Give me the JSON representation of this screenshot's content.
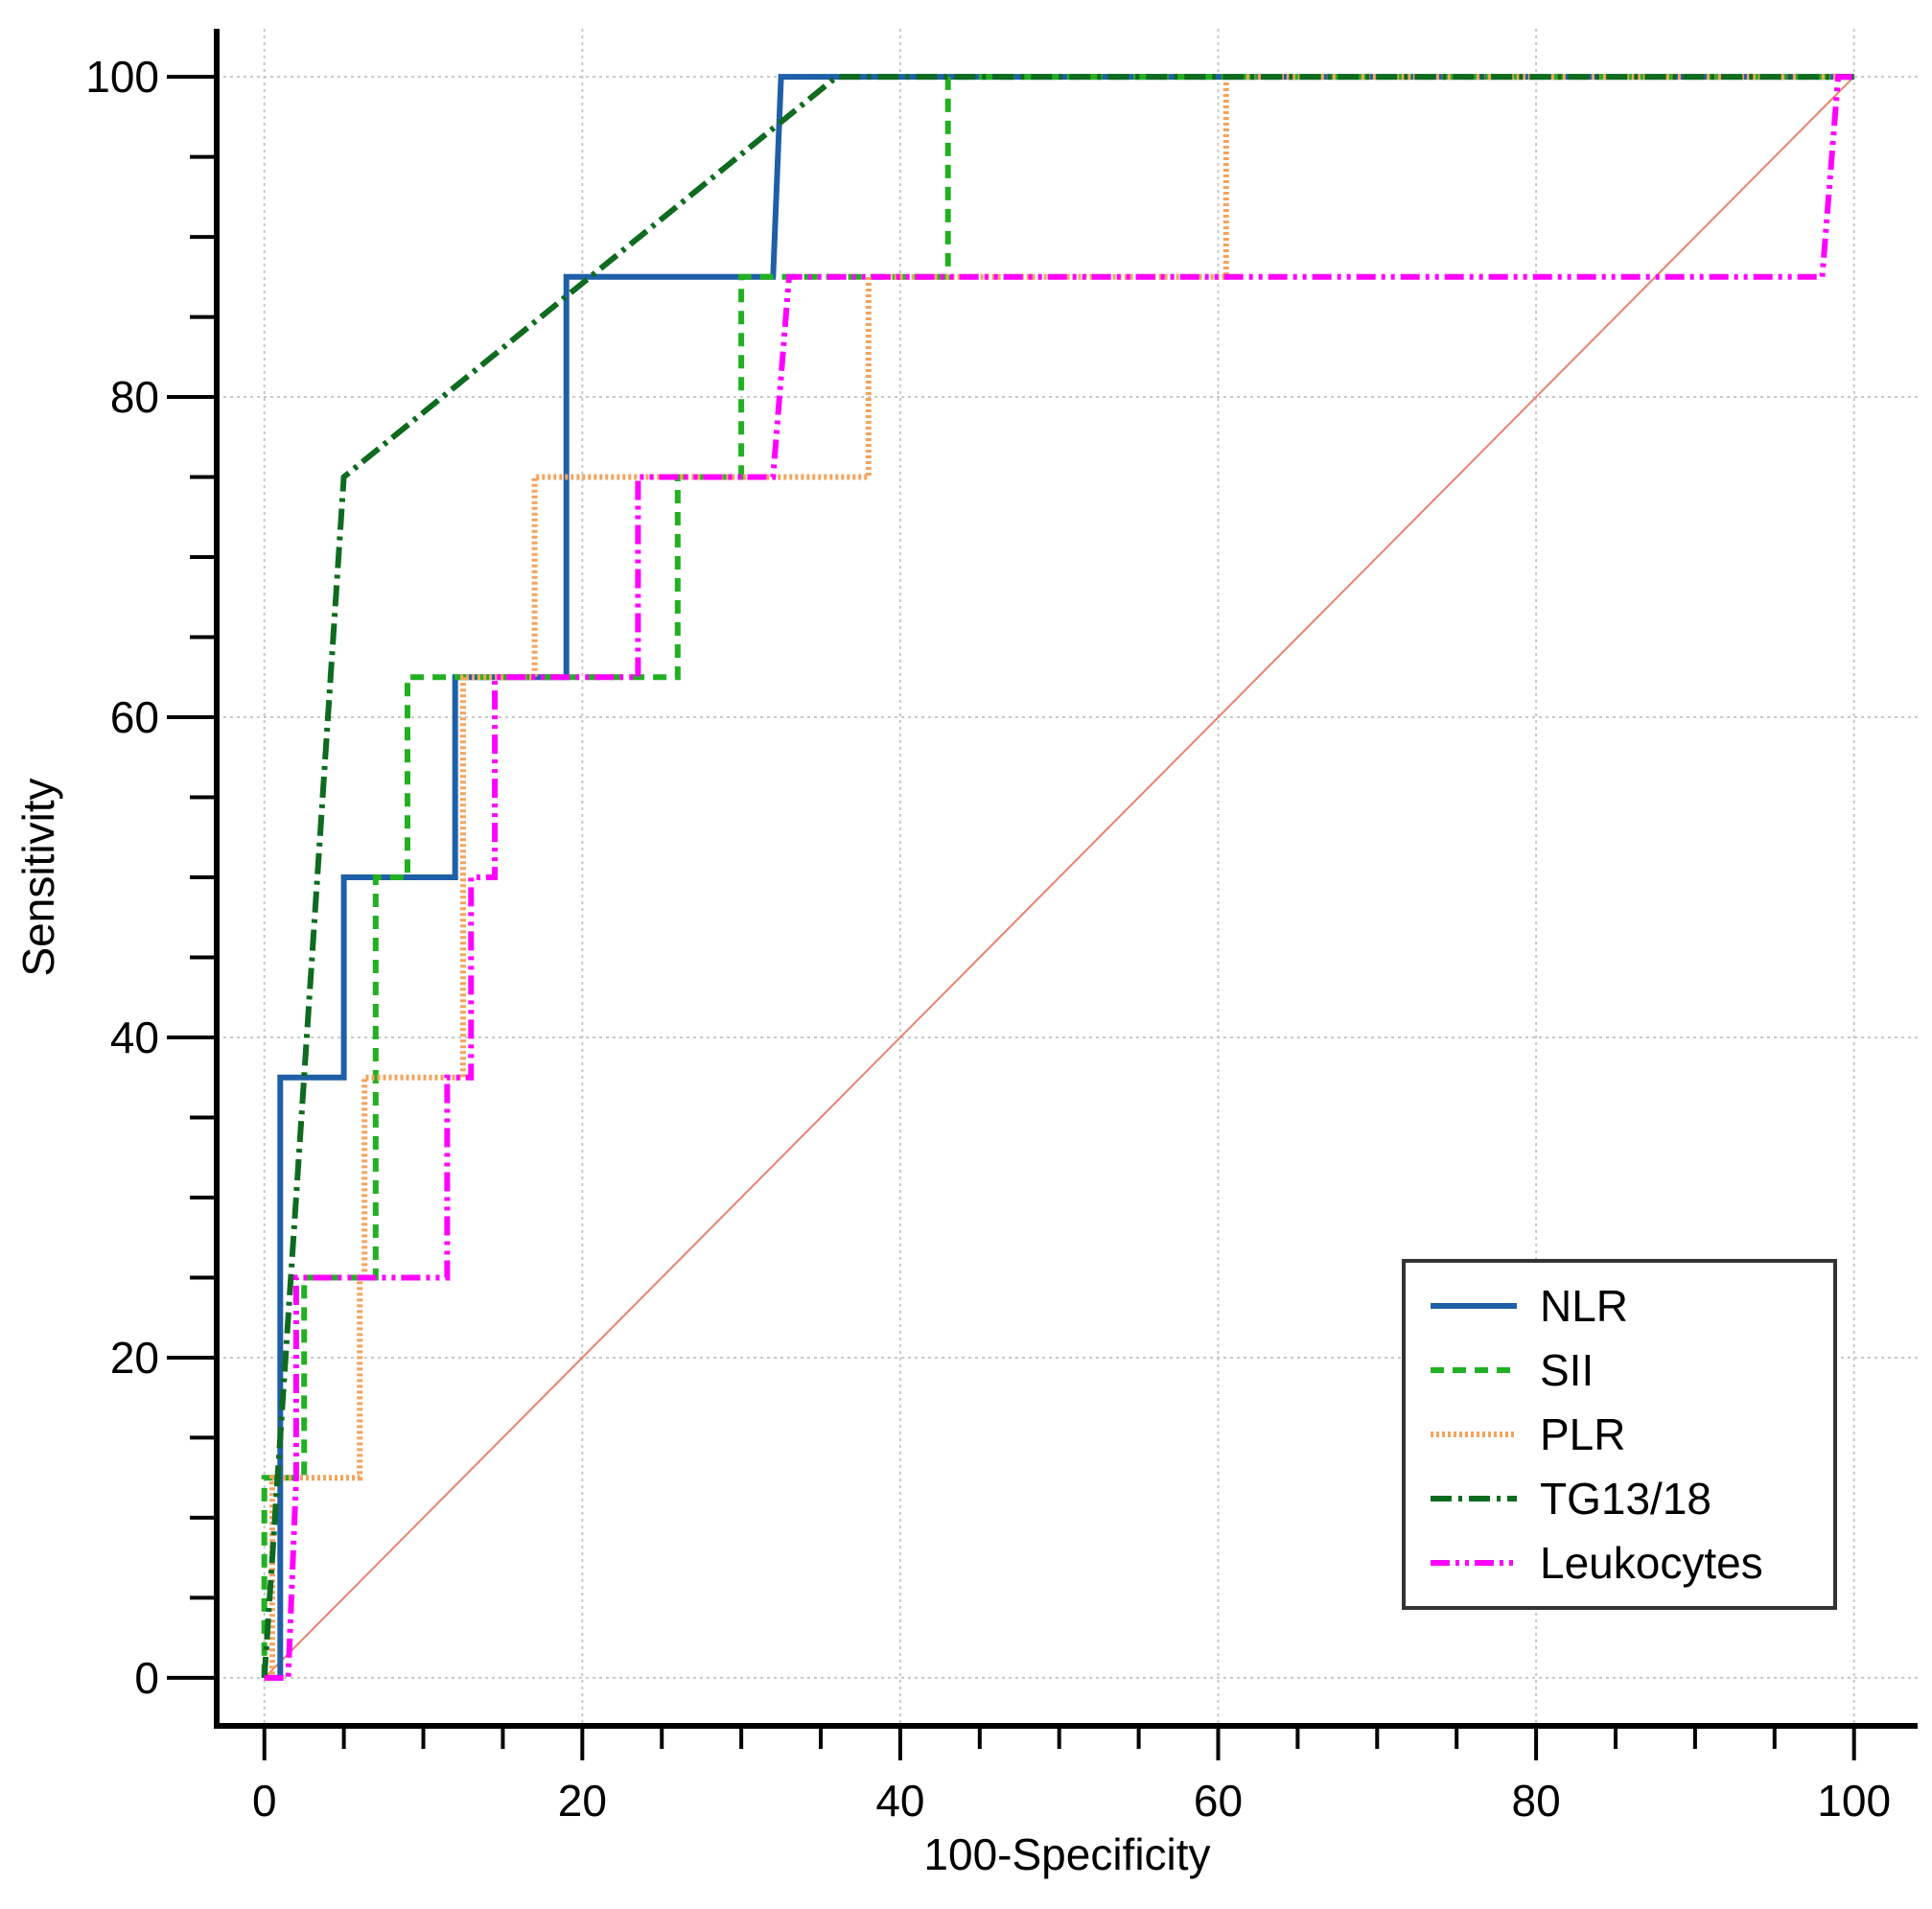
{
  "chart_data": {
    "type": "line",
    "xlabel": "100-Specificity",
    "ylabel": "Sensitivity",
    "xlim": [
      -3,
      104
    ],
    "ylim": [
      -3,
      103
    ],
    "xticks": [
      0,
      20,
      40,
      60,
      80,
      100
    ],
    "yticks": [
      0,
      20,
      40,
      60,
      80,
      100
    ],
    "grid": true,
    "legend_position": "bottom-right",
    "reference_line": {
      "x": [
        0,
        100
      ],
      "y": [
        0,
        100
      ],
      "color": "#e8826f"
    },
    "series": [
      {
        "name": "NLR",
        "color": "#1f5fa8",
        "dash": "solid",
        "x": [
          0,
          1,
          1,
          5,
          5,
          12,
          12,
          19,
          19,
          32,
          32.5,
          100
        ],
        "y": [
          0,
          0,
          37.5,
          37.5,
          50,
          50,
          62.5,
          62.5,
          87.5,
          87.5,
          100,
          100
        ]
      },
      {
        "name": "SII",
        "color": "#22b022",
        "dash": "dashed",
        "x": [
          0,
          0,
          2.5,
          2.5,
          7,
          7,
          9,
          9,
          26,
          26,
          30,
          30,
          43,
          43,
          100
        ],
        "y": [
          0,
          12.5,
          12.5,
          25,
          25,
          50,
          50,
          62.5,
          62.5,
          75,
          75,
          87.5,
          87.5,
          100,
          100
        ]
      },
      {
        "name": "PLR",
        "color": "#f4a35c",
        "dash": "dotted",
        "x": [
          0,
          0.5,
          0.5,
          6,
          6,
          6.3,
          6.3,
          12.5,
          12.5,
          17,
          17,
          38,
          38,
          60.5,
          60.5,
          100
        ],
        "y": [
          0,
          0,
          12.5,
          12.5,
          25,
          25,
          37.5,
          37.5,
          62.5,
          62.5,
          75,
          75,
          87.5,
          87.5,
          100,
          100
        ]
      },
      {
        "name": "TG13/18",
        "color": "#0e6b1f",
        "dash": "dashdot",
        "x": [
          0,
          5,
          36,
          100
        ],
        "y": [
          0,
          75,
          100,
          100
        ]
      },
      {
        "name": "Leukocytes",
        "color": "#ff00ff",
        "dash": "dashdotdot",
        "x": [
          0,
          1.5,
          2,
          2,
          11.5,
          11.5,
          13,
          13,
          14.5,
          14.5,
          23.5,
          23.5,
          32,
          33,
          98,
          99,
          100
        ],
        "y": [
          0,
          0,
          12.5,
          25,
          25,
          37.5,
          37.5,
          50,
          50,
          62.5,
          62.5,
          75,
          75,
          87.5,
          87.5,
          100,
          100
        ]
      }
    ]
  }
}
